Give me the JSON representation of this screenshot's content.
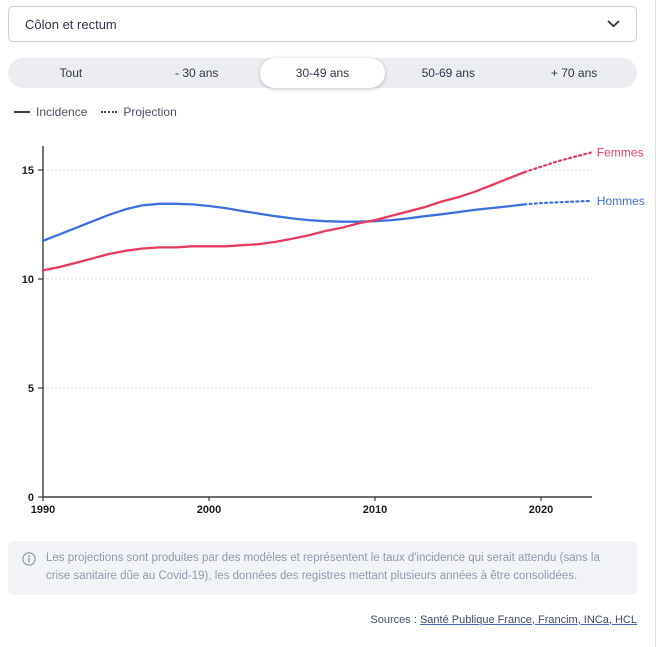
{
  "select": {
    "value": "Côlon et rectum",
    "icon": "chevron-down-icon"
  },
  "tabs": {
    "items": [
      {
        "label": "Tout"
      },
      {
        "label": "- 30 ans"
      },
      {
        "label": "30-49 ans"
      },
      {
        "label": "50-69 ans"
      },
      {
        "label": "+ 70 ans"
      }
    ],
    "selected": "30-49 ans"
  },
  "legend": {
    "items": [
      {
        "label": "Incidence",
        "style": "solid"
      },
      {
        "label": "Projection",
        "style": "dotted"
      }
    ]
  },
  "chart_data": {
    "type": "line",
    "title": "",
    "xlabel": "",
    "ylabel": "",
    "x_ticks": [
      1990,
      2000,
      2010,
      2020
    ],
    "y_ticks": [
      0,
      5,
      10,
      15
    ],
    "xlim": [
      1990,
      2023.6
    ],
    "ylim": [
      0,
      16.2
    ],
    "grid": "horizontal dotted",
    "legend_position": "top-left",
    "series": [
      {
        "name": "Hommes",
        "color": "#3e6fdd",
        "solid": {
          "x_start": 1990,
          "step": 1,
          "values": [
            11.75,
            12.05,
            12.35,
            12.65,
            12.95,
            13.2,
            13.38,
            13.45,
            13.45,
            13.42,
            13.35,
            13.25,
            13.12,
            13.0,
            12.88,
            12.78,
            12.7,
            12.65,
            12.63,
            12.63,
            12.65,
            12.7,
            12.78,
            12.88,
            12.97,
            13.07,
            13.17,
            13.25,
            13.33,
            13.42
          ]
        },
        "projection": {
          "x_start": 2019,
          "step": 1,
          "values": [
            13.42,
            13.48,
            13.52,
            13.55,
            13.58
          ]
        }
      },
      {
        "name": "Femmes",
        "color": "#e83a5f",
        "solid": {
          "x_start": 1990,
          "step": 1,
          "values": [
            10.4,
            10.55,
            10.75,
            10.95,
            11.15,
            11.3,
            11.4,
            11.45,
            11.45,
            11.5,
            11.5,
            11.5,
            11.55,
            11.6,
            11.7,
            11.85,
            12.0,
            12.2,
            12.35,
            12.55,
            12.7,
            12.9,
            13.1,
            13.3,
            13.55,
            13.75,
            14.0,
            14.3,
            14.6,
            14.9
          ]
        },
        "projection": {
          "x_start": 2019,
          "step": 1,
          "values": [
            14.9,
            15.15,
            15.4,
            15.6,
            15.8
          ]
        }
      }
    ]
  },
  "info": {
    "icon": "info-icon",
    "text": "Les projections sont produites par des modèles et représentent le taux d'incidence qui serait attendu (sans la crise sanitaire dûe au Covid-19), les données des registres mettant plusieurs années à être consolidées."
  },
  "sources": {
    "prefix": "Sources : ",
    "link": "Santé Publique France, Francim, INCa, HCL"
  },
  "colors": {
    "femmes": "#e83a5f",
    "hommes": "#3e6fdd",
    "axis": "#3d3d3d",
    "grid": "#d0d2d6",
    "legend_line": "#3a4154"
  }
}
